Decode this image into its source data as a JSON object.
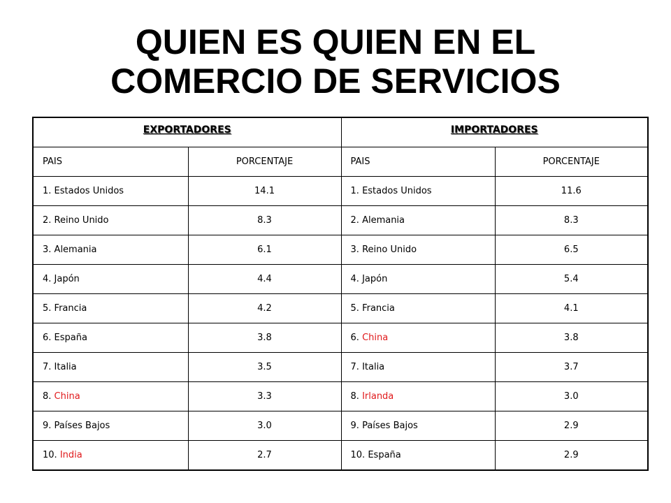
{
  "title": {
    "line1": "QUIEN ES QUIEN EN EL",
    "line2": "COMERCIO DE SERVICIOS"
  },
  "table": {
    "groups": {
      "exporters": "EXPORTADORES",
      "importers": "IMPORTADORES"
    },
    "column_headers": {
      "exp_country": "PAIS",
      "exp_percent": "PORCENTAJE",
      "imp_country": "PAIS",
      "imp_percent": "PORCENTAJE"
    },
    "highlight_color": "#e0191b",
    "rows": [
      {
        "exp_rank": "1.",
        "exp_country": "Estados Unidos",
        "exp_highlight": false,
        "exp_value": "14.1",
        "imp_rank": "1.",
        "imp_country": "Estados Unidos",
        "imp_highlight": false,
        "imp_value": "11.6"
      },
      {
        "exp_rank": "2.",
        "exp_country": "Reino Unido",
        "exp_highlight": false,
        "exp_value": "8.3",
        "imp_rank": "2.",
        "imp_country": "Alemania",
        "imp_highlight": false,
        "imp_value": "8.3"
      },
      {
        "exp_rank": "3.",
        "exp_country": "Alemania",
        "exp_highlight": false,
        "exp_value": "6.1",
        "imp_rank": "3.",
        "imp_country": "Reino Unido",
        "imp_highlight": false,
        "imp_value": "6.5"
      },
      {
        "exp_rank": "4.",
        "exp_country": "Japón",
        "exp_highlight": false,
        "exp_value": "4.4",
        "imp_rank": "4.",
        "imp_country": "Japón",
        "imp_highlight": false,
        "imp_value": "5.4"
      },
      {
        "exp_rank": "5.",
        "exp_country": "Francia",
        "exp_highlight": false,
        "exp_value": "4.2",
        "imp_rank": "5.",
        "imp_country": "Francia",
        "imp_highlight": false,
        "imp_value": "4.1"
      },
      {
        "exp_rank": "6.",
        "exp_country": "España",
        "exp_highlight": false,
        "exp_value": "3.8",
        "imp_rank": "6.",
        "imp_country": "China",
        "imp_highlight": true,
        "imp_value": "3.8"
      },
      {
        "exp_rank": "7.",
        "exp_country": "Italia",
        "exp_highlight": false,
        "exp_value": "3.5",
        "imp_rank": "7.",
        "imp_country": "Italia",
        "imp_highlight": false,
        "imp_value": "3.7"
      },
      {
        "exp_rank": "8.",
        "exp_country": "China",
        "exp_highlight": true,
        "exp_value": "3.3",
        "imp_rank": "8.",
        "imp_country": "Irlanda",
        "imp_highlight": true,
        "imp_value": "3.0"
      },
      {
        "exp_rank": "9.",
        "exp_country": "Países Bajos",
        "exp_highlight": false,
        "exp_value": "3.0",
        "imp_rank": "9.",
        "imp_country": "Países Bajos",
        "imp_highlight": false,
        "imp_value": "2.9"
      },
      {
        "exp_rank": "10.",
        "exp_country": "India",
        "exp_highlight": true,
        "exp_value": "2.7",
        "imp_rank": "10.",
        "imp_country": "España",
        "imp_highlight": false,
        "imp_value": "2.9"
      }
    ]
  }
}
